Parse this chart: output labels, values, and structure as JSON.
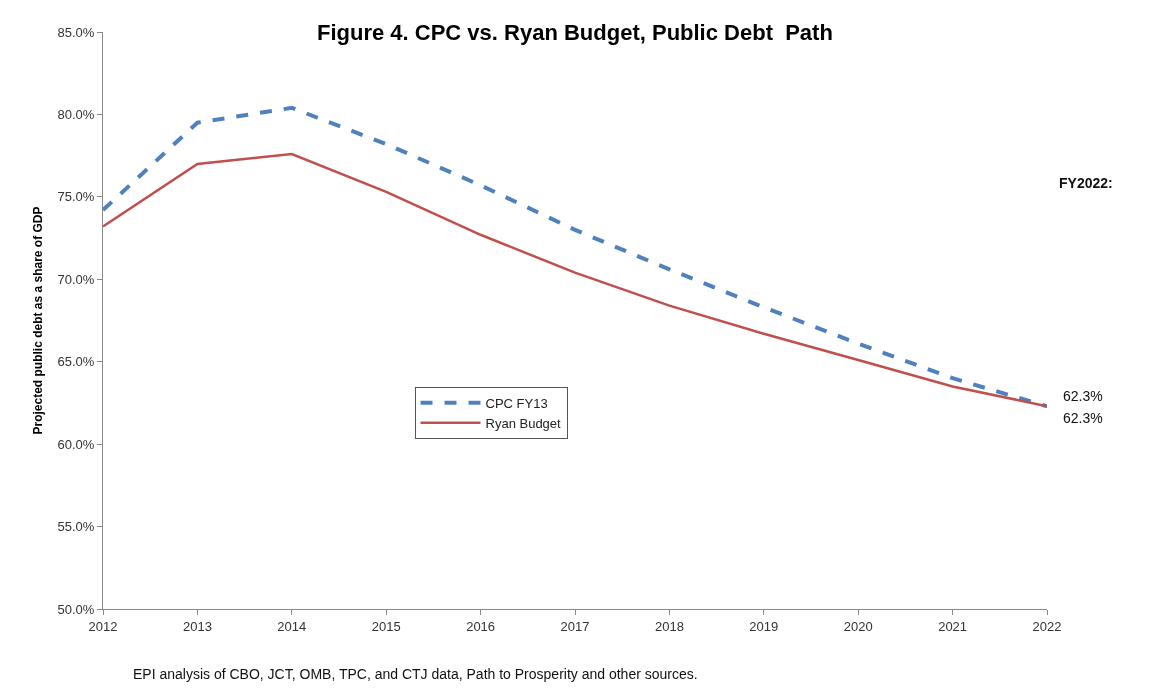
{
  "chart_data": {
    "type": "line",
    "title": "Figure 4. CPC vs. Ryan Budget, Public Debt  Path",
    "ylabel": "Projected public debt as a share of GDP",
    "x": [
      2012,
      2013,
      2014,
      2015,
      2016,
      2017,
      2018,
      2019,
      2020,
      2021,
      2022
    ],
    "series": [
      {
        "name": "CPC FY13",
        "color": "#4f81bd",
        "line_style": "dashed",
        "values": [
          74.2,
          79.5,
          80.4,
          78.2,
          75.7,
          73.0,
          70.6,
          68.3,
          66.1,
          64.0,
          62.3
        ]
      },
      {
        "name": "Ryan Budget",
        "color": "#c0504d",
        "line_style": "solid",
        "values": [
          73.2,
          77.0,
          77.6,
          75.3,
          72.7,
          70.4,
          68.4,
          66.7,
          65.1,
          63.5,
          62.3
        ]
      }
    ],
    "xlim": [
      2012,
      2022
    ],
    "xticks": [
      2012,
      2013,
      2014,
      2015,
      2016,
      2017,
      2018,
      2019,
      2020,
      2021,
      2022
    ],
    "ylim": [
      50,
      85
    ],
    "yticks": [
      {
        "value": 50,
        "label": "50.0%"
      },
      {
        "value": 55,
        "label": "55.0%"
      },
      {
        "value": 60,
        "label": "60.0%"
      },
      {
        "value": 65,
        "label": "65.0%"
      },
      {
        "value": 70,
        "label": "70.0%"
      },
      {
        "value": 75,
        "label": "75.0%"
      },
      {
        "value": 80,
        "label": "80.0%"
      },
      {
        "value": 85,
        "label": "85.0%"
      }
    ],
    "legend": "center",
    "marker": "none",
    "annotations": [
      "FY2022:",
      {
        "text": "62.3%",
        "x": 2022,
        "y": 62.3
      },
      {
        "text": "62.3%",
        "x": 2022,
        "y": 62.3
      },
      "EPI analysis of CBO, JCT, OMB, TPC, and CTJ data, Path to Prosperity and other sources."
    ]
  }
}
